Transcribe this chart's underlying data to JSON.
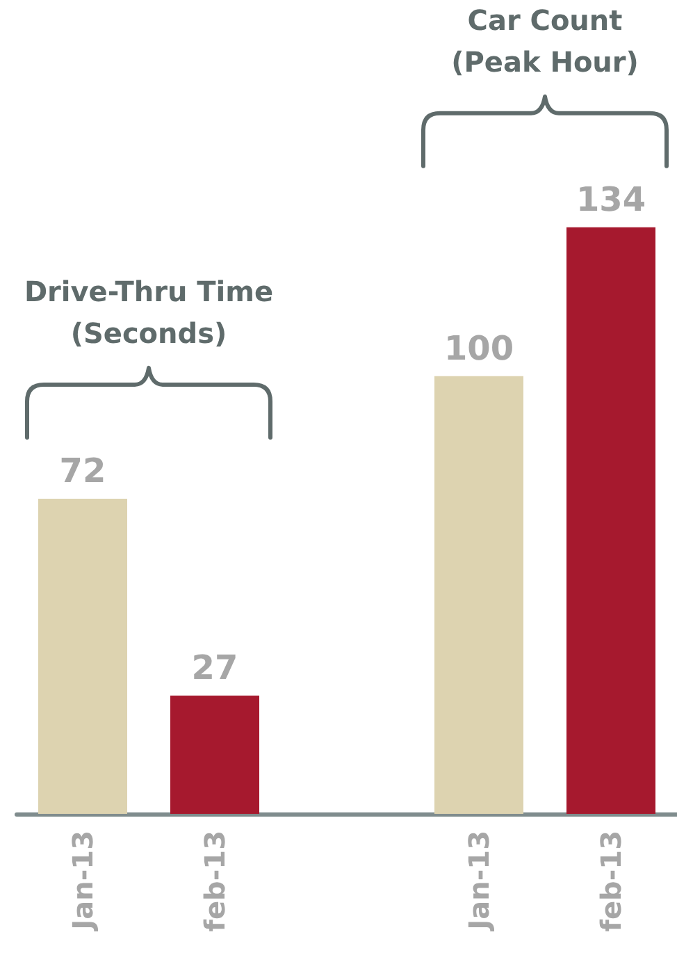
{
  "chart_data": {
    "type": "bar",
    "categories": [
      "Jan-13",
      "feb-13",
      null,
      "Jan-13",
      "feb-13"
    ],
    "values": [
      72,
      27,
      null,
      100,
      134
    ],
    "colors": [
      "#ddd3b0",
      "#a6192e",
      null,
      "#ddd3b0",
      "#a6192e"
    ],
    "data_labels": true,
    "tick_labels": "x",
    "annotations": [
      "Drive-Thru Time\n(Seconds)",
      "Car Count\n(Peak Hour)"
    ]
  }
}
